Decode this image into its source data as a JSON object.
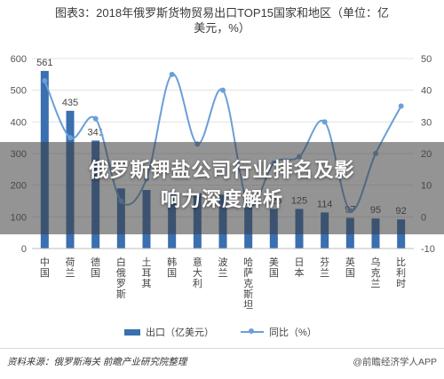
{
  "chart_data": {
    "type": "bar",
    "title_line1": "图表3：2018年俄罗斯货物贸易出口TOP15国家和地区（单位：亿",
    "title_line2": "美元，%）",
    "categories": [
      "中国",
      "荷兰",
      "德国",
      "白俄罗斯",
      "土耳其",
      "韩国",
      "意大利",
      "波兰",
      "哈萨克斯坦",
      "美国",
      "日本",
      "芬兰",
      "英国",
      "乌克兰",
      "比利时"
    ],
    "series": [
      {
        "name": "出口（亿美元）",
        "type": "bar",
        "axis": "left",
        "color": "#3a6fb0",
        "values": [
          561,
          435,
          341,
          190,
          185,
          180,
          175,
          170,
          130,
          125,
          125,
          114,
          97,
          95,
          92
        ]
      },
      {
        "name": "同比（%）",
        "type": "line",
        "axis": "right",
        "color": "#6a9fd6",
        "values": [
          43,
          25,
          31,
          5,
          12,
          45,
          23,
          40,
          4,
          17,
          19,
          30,
          2,
          20,
          35
        ]
      }
    ],
    "data_labels": [
      "561",
      "435",
      "341",
      "",
      "",
      "",
      "",
      "",
      "",
      "125",
      "125",
      "114",
      "97",
      "95",
      "92"
    ],
    "yleft": {
      "min": 0,
      "max": 600,
      "ticks": [
        0,
        100,
        200,
        300,
        400,
        500,
        600
      ]
    },
    "yright": {
      "min": -10,
      "max": 50,
      "ticks": [
        -10,
        0,
        10,
        20,
        30,
        40,
        50
      ]
    },
    "grid": true,
    "legend_position": "bottom"
  },
  "overlay": {
    "line1": "俄罗斯钾盐公司行业排名及影",
    "line2": "响力深度解析"
  },
  "footer": {
    "source": "资料来源：俄罗斯海关 前瞻产业研究院整理",
    "brand": "@前瞻经济学人APP"
  }
}
